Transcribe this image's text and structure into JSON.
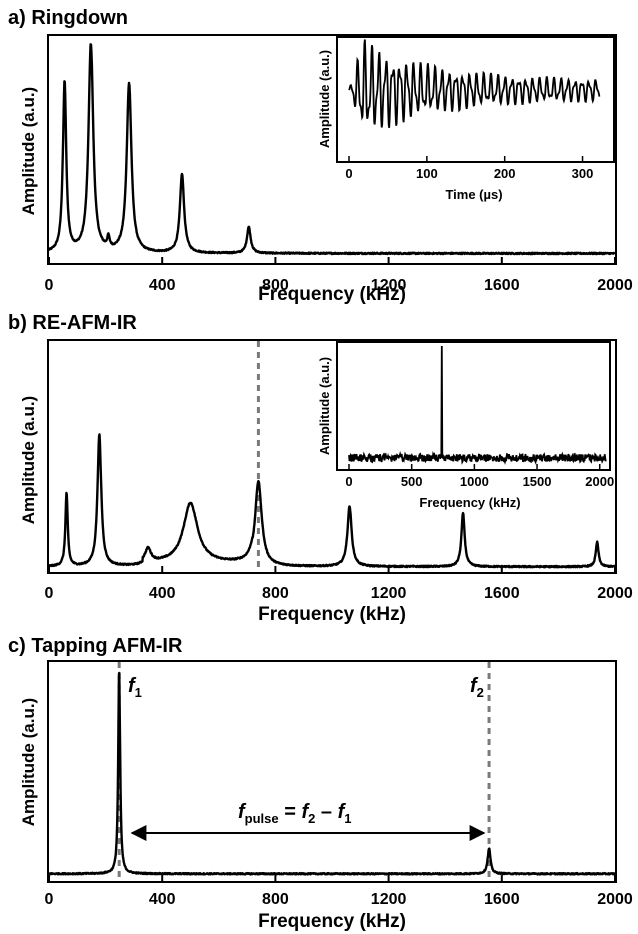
{
  "chart_data": [
    {
      "id": "a",
      "type": "line",
      "title": "a) Ringdown",
      "xlabel": "Frequency (kHz)",
      "ylabel": "Amplitude (a.u.)",
      "xlim": [
        0,
        2000
      ],
      "xticks": [
        0,
        400,
        800,
        1200,
        1600,
        2000
      ],
      "grid": false,
      "baseline": 0.03,
      "peaks": [
        {
          "x": 55,
          "y": 0.78,
          "w": 7
        },
        {
          "x": 148,
          "y": 0.95,
          "w": 10
        },
        {
          "x": 283,
          "y": 0.77,
          "w": 10
        },
        {
          "x": 210,
          "y": 0.05,
          "w": 5
        },
        {
          "x": 470,
          "y": 0.36,
          "w": 9
        },
        {
          "x": 706,
          "y": 0.12,
          "w": 8
        }
      ],
      "inset": {
        "type": "line",
        "xlabel": "Time (µs)",
        "ylabel": "Amplitude (a.u.)",
        "xlim": [
          0,
          330
        ],
        "xticks": [
          0,
          100,
          200,
          300
        ],
        "decay_time_us": 90,
        "oscillation_period_us": 9
      }
    },
    {
      "id": "b",
      "type": "line",
      "title": "b) RE-AFM-IR",
      "xlabel": "Frequency (kHz)",
      "ylabel": "Amplitude (a.u.)",
      "xlim": [
        0,
        2000
      ],
      "xticks": [
        0,
        400,
        800,
        1200,
        1600,
        2000
      ],
      "grid": false,
      "baseline": 0.01,
      "marker_line_x": 740,
      "peaks": [
        {
          "x": 62,
          "y": 0.33,
          "w": 5
        },
        {
          "x": 178,
          "y": 0.59,
          "w": 8
        },
        {
          "x": 350,
          "y": 0.06,
          "w": 12
        },
        {
          "x": 500,
          "y": 0.27,
          "w": 30
        },
        {
          "x": 740,
          "y": 0.38,
          "w": 14
        },
        {
          "x": 1062,
          "y": 0.27,
          "w": 9
        },
        {
          "x": 1463,
          "y": 0.24,
          "w": 7
        },
        {
          "x": 1937,
          "y": 0.11,
          "w": 6
        }
      ],
      "inset": {
        "type": "line",
        "xlabel": "Frequency (kHz)",
        "ylabel": "Amplitude (a.u.)",
        "xlim": [
          0,
          2050
        ],
        "xticks": [
          0,
          500,
          1000,
          1500,
          2000
        ],
        "peak_x": 740
      }
    },
    {
      "id": "c",
      "type": "line",
      "title": "c) Tapping AFM-IR",
      "xlabel": "Frequency (kHz)",
      "ylabel": "Amplitude (a.u.)",
      "xlim": [
        0,
        2000
      ],
      "xticks": [
        0,
        400,
        800,
        1200,
        1600,
        2000
      ],
      "grid": false,
      "baseline": 0.02,
      "marker_lines_x": [
        248,
        1555
      ],
      "peaks": [
        {
          "x": 248,
          "y": 0.97,
          "w": 4
        },
        {
          "x": 1555,
          "y": 0.12,
          "w": 6
        }
      ],
      "annotations": {
        "f1": {
          "base": "f",
          "sub": "1"
        },
        "f2": {
          "base": "f",
          "sub": "2"
        },
        "formula": {
          "lhs": "f",
          "lhs_sub": "pulse",
          "eq": " = ",
          "a": "f",
          "a_sub": "2",
          "minus": " – ",
          "b": "f",
          "b_sub": "1"
        }
      }
    }
  ]
}
